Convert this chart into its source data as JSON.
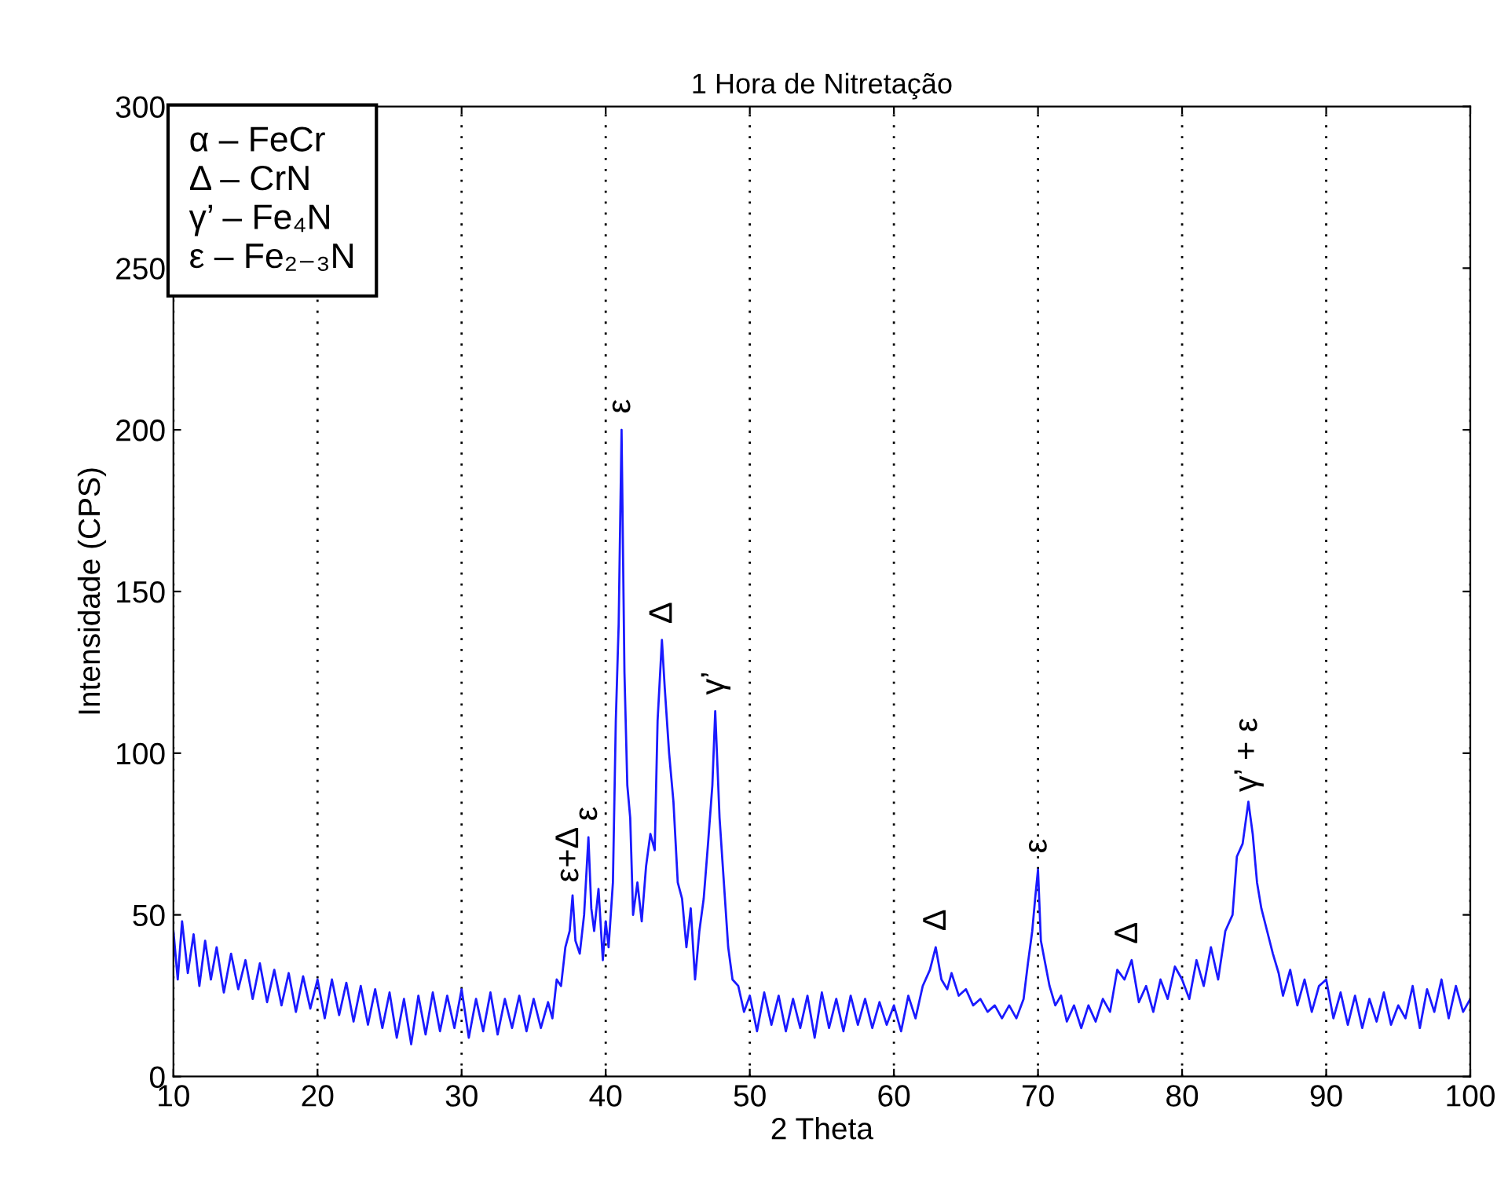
{
  "chart_data": {
    "type": "line",
    "title": "1 Hora de Nitretação",
    "xlabel": "2 Theta",
    "ylabel": "Intensidade (CPS)",
    "xlim": [
      10,
      100
    ],
    "xticks": [
      10,
      20,
      30,
      40,
      50,
      60,
      70,
      80,
      90,
      100
    ],
    "ylim": [
      0,
      300
    ],
    "yticks": [
      0,
      50,
      100,
      150,
      200,
      250,
      300
    ],
    "grid": "x",
    "legend": false,
    "annotations": [
      "α – FeCr\nΔ – CrN\nγ’ – Fe₄N\nε – Fe₂₋₃N",
      {
        "text": "ε+Δ",
        "x": 37.5,
        "y": 57
      },
      {
        "text": "ε",
        "x": 38.8,
        "y": 76
      },
      {
        "text": "ε",
        "x": 41.1,
        "y": 202
      },
      {
        "text": "Δ",
        "x": 44,
        "y": 137
      },
      {
        "text": "γ’",
        "x": 47.6,
        "y": 115
      },
      {
        "text": "Δ",
        "x": 63,
        "y": 42
      },
      {
        "text": "ε",
        "x": 70,
        "y": 66
      },
      {
        "text": "Δ",
        "x": 76.3,
        "y": 38
      },
      {
        "text": "γ’ + ε",
        "x": 84.6,
        "y": 85
      }
    ],
    "series": [
      {
        "color": "#1a1aff",
        "x": [
          10,
          10.3,
          10.6,
          11,
          11.4,
          11.8,
          12.2,
          12.6,
          13,
          13.5,
          14,
          14.5,
          15,
          15.5,
          16,
          16.5,
          17,
          17.5,
          18,
          18.5,
          19,
          19.5,
          20,
          20.5,
          21,
          21.5,
          22,
          22.5,
          23,
          23.5,
          24,
          24.5,
          25,
          25.5,
          26,
          26.5,
          27,
          27.5,
          28,
          28.5,
          29,
          29.5,
          30,
          30.5,
          31,
          31.5,
          32,
          32.5,
          33,
          33.5,
          34,
          34.5,
          35,
          35.5,
          36,
          36.3,
          36.6,
          36.9,
          37.2,
          37.5,
          37.7,
          37.9,
          38.2,
          38.5,
          38.8,
          39,
          39.2,
          39.5,
          39.8,
          40,
          40.2,
          40.5,
          40.7,
          40.9,
          41.1,
          41.3,
          41.5,
          41.7,
          41.9,
          42.2,
          42.5,
          42.8,
          43.1,
          43.4,
          43.6,
          43.9,
          44.1,
          44.4,
          44.7,
          45,
          45.3,
          45.6,
          45.9,
          46.2,
          46.5,
          46.8,
          47.1,
          47.4,
          47.6,
          47.9,
          48.2,
          48.5,
          48.8,
          49.2,
          49.6,
          50,
          50.5,
          51,
          51.5,
          52,
          52.5,
          53,
          53.5,
          54,
          54.5,
          55,
          55.5,
          56,
          56.5,
          57,
          57.5,
          58,
          58.5,
          59,
          59.5,
          60,
          60.5,
          61,
          61.5,
          62,
          62.5,
          62.9,
          63.3,
          63.7,
          64,
          64.5,
          65,
          65.5,
          66,
          66.5,
          67,
          67.5,
          68,
          68.5,
          69,
          69.3,
          69.6,
          69.8,
          70,
          70.2,
          70.5,
          70.8,
          71.2,
          71.6,
          72,
          72.5,
          73,
          73.5,
          74,
          74.5,
          75,
          75.5,
          76,
          76.5,
          77,
          77.5,
          78,
          78.5,
          79,
          79.5,
          80,
          80.5,
          81,
          81.5,
          82,
          82.5,
          83,
          83.5,
          83.8,
          84.2,
          84.6,
          84.9,
          85.2,
          85.5,
          85.9,
          86.3,
          86.7,
          87,
          87.5,
          88,
          88.5,
          89,
          89.5,
          90,
          90.5,
          91,
          91.5,
          92,
          92.5,
          93,
          93.5,
          94,
          94.5,
          95,
          95.5,
          96,
          96.5,
          97,
          97.5,
          98,
          98.5,
          99,
          99.5,
          100
        ],
        "values": [
          45,
          30,
          48,
          32,
          44,
          28,
          42,
          30,
          40,
          26,
          38,
          27,
          36,
          24,
          35,
          23,
          33,
          22,
          32,
          20,
          31,
          21,
          30,
          18,
          30,
          19,
          29,
          17,
          28,
          16,
          27,
          15,
          26,
          12,
          24,
          10,
          25,
          13,
          26,
          14,
          25,
          15,
          27,
          12,
          24,
          14,
          26,
          13,
          24,
          15,
          25,
          14,
          24,
          15,
          23,
          18,
          30,
          28,
          40,
          45,
          56,
          42,
          38,
          50,
          74,
          52,
          45,
          58,
          36,
          48,
          40,
          60,
          110,
          140,
          200,
          125,
          90,
          80,
          50,
          60,
          48,
          65,
          75,
          70,
          110,
          135,
          120,
          100,
          85,
          60,
          55,
          40,
          52,
          30,
          45,
          55,
          72,
          90,
          113,
          80,
          60,
          40,
          30,
          28,
          20,
          25,
          14,
          26,
          16,
          25,
          14,
          24,
          15,
          25,
          12,
          26,
          15,
          24,
          14,
          25,
          16,
          24,
          15,
          23,
          16,
          22,
          14,
          25,
          18,
          28,
          33,
          40,
          30,
          27,
          32,
          25,
          27,
          22,
          24,
          20,
          22,
          18,
          22,
          18,
          24,
          35,
          45,
          55,
          64,
          42,
          35,
          28,
          22,
          25,
          17,
          22,
          15,
          22,
          17,
          24,
          20,
          33,
          30,
          36,
          23,
          28,
          20,
          30,
          24,
          34,
          30,
          24,
          36,
          28,
          40,
          30,
          45,
          50,
          68,
          72,
          85,
          75,
          60,
          52,
          45,
          38,
          32,
          25,
          33,
          22,
          30,
          20,
          28,
          30,
          18,
          26,
          16,
          25,
          15,
          24,
          17,
          26,
          16,
          22,
          18,
          28,
          15,
          27,
          20,
          30,
          18,
          28,
          20,
          24
        ]
      }
    ]
  }
}
